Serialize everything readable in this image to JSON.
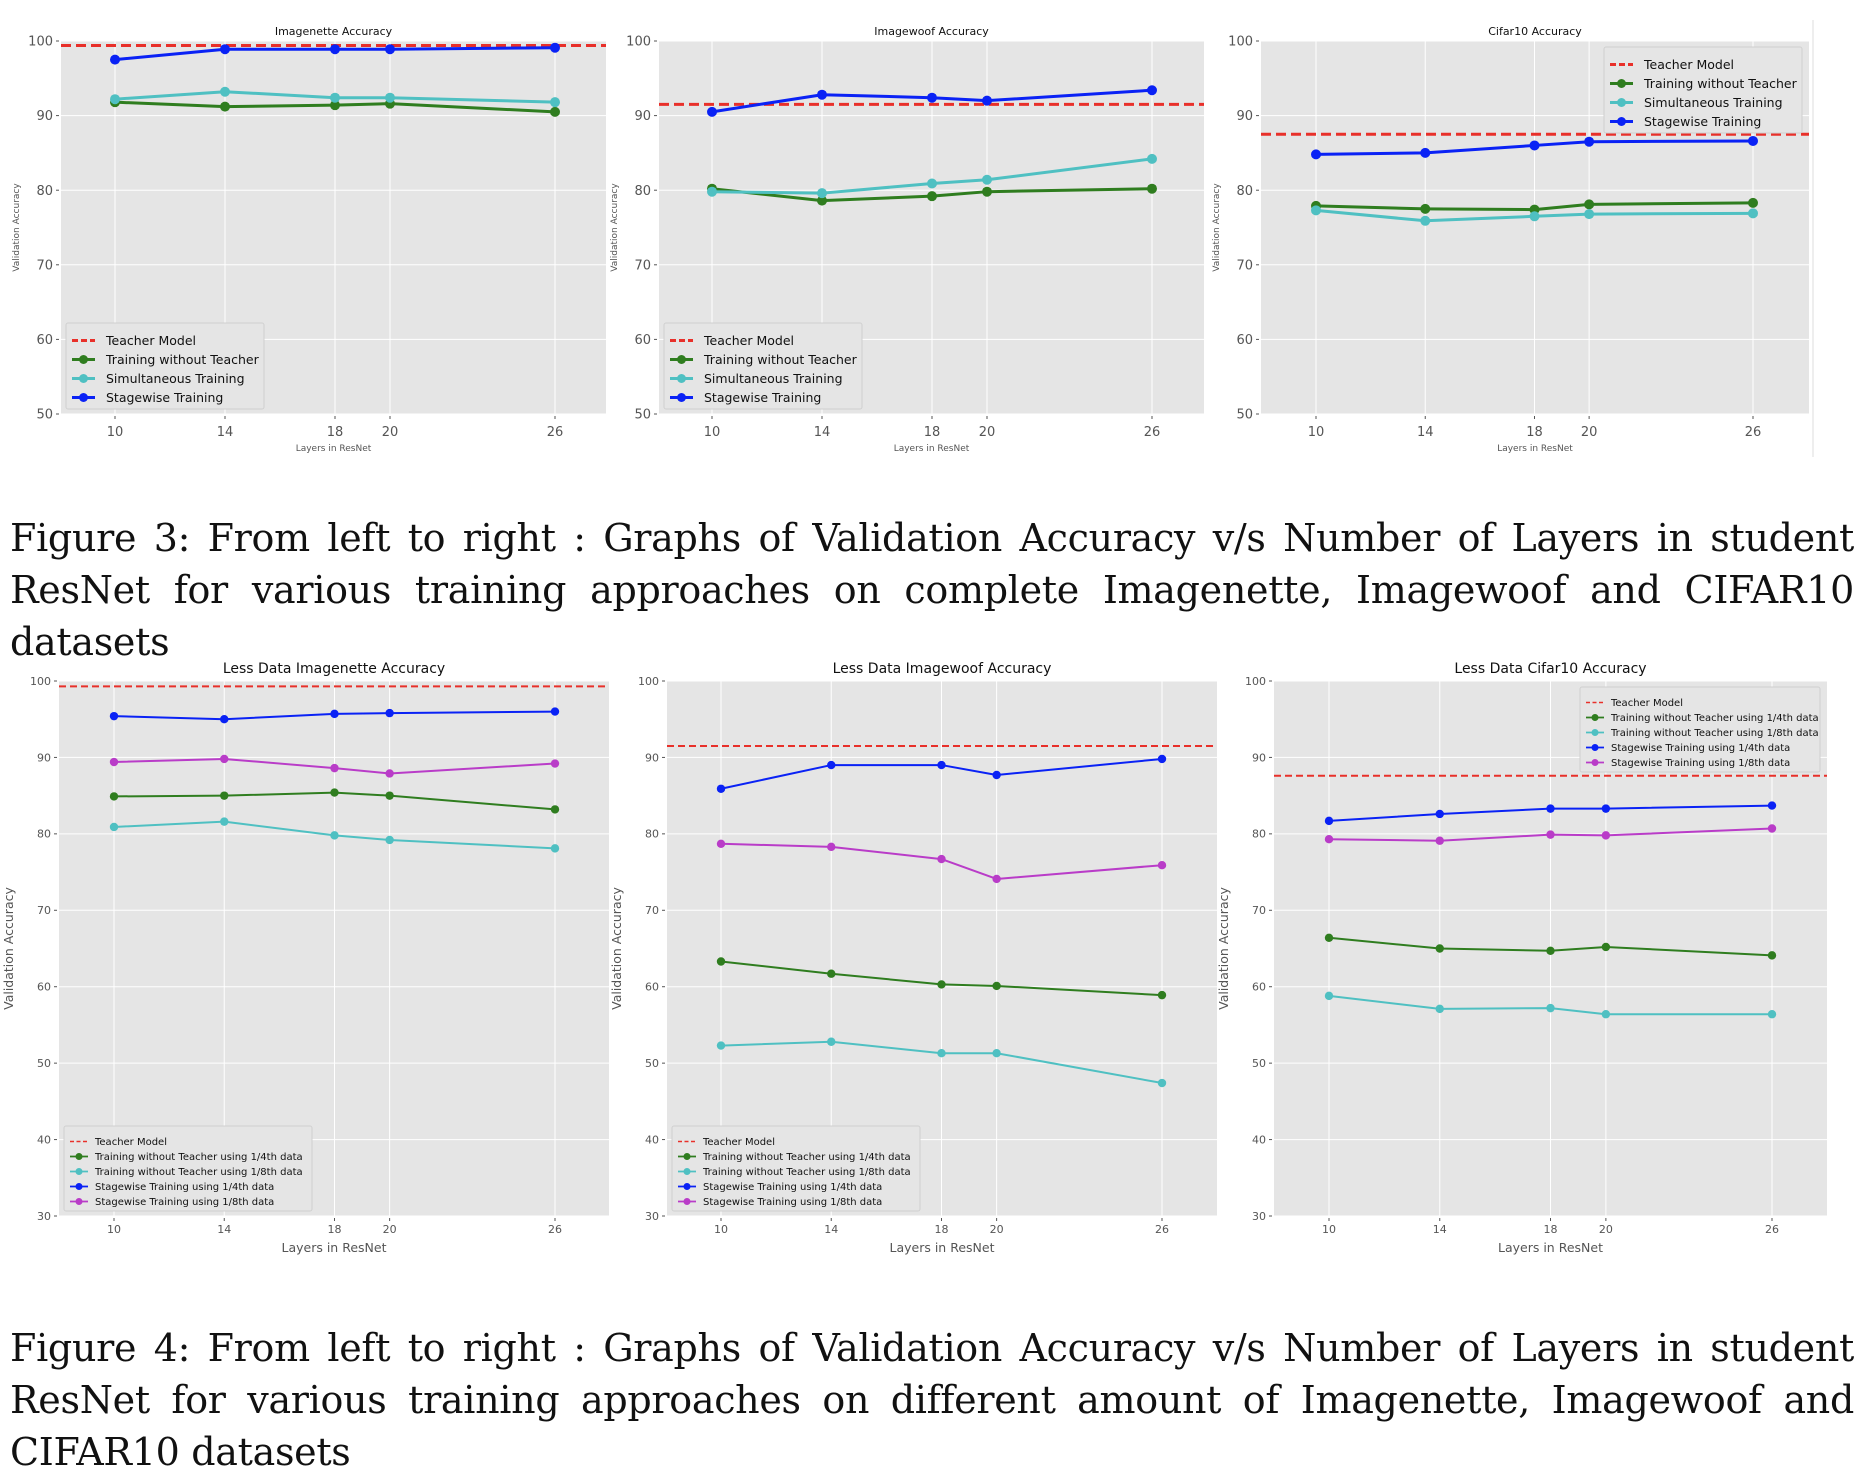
{
  "figures": [
    {
      "caption": "Figure 3: From left to right : Graphs of Validation Accuracy v/s Number of Layers in student ResNet for various training approaches on complete Imagenette, Imagewoof and CIFAR10 datasets"
    },
    {
      "caption": "Figure 4: From left to right : Graphs of Validation Accuracy v/s Number of Layers in student ResNet for various training approaches on different amount of Imagenette, Imagewoof and CIFAR10 datasets"
    }
  ],
  "colors": {
    "teacher": "#e8302a",
    "without_teacher": "#2f7d1f",
    "without_teacher_eighth": "#4fc0c2",
    "simultaneous": "#4fc0c2",
    "stagewise": "#0a22f5",
    "stagewise_eighth": "#b93cc8",
    "plot_bg": "#e5e5e5",
    "grid": "#ffffff",
    "tick_text": "#555555"
  },
  "chart_data": [
    {
      "type": "line",
      "title": "Imagenette Accuracy",
      "xlabel": "Layers in ResNet",
      "ylabel": "Validation Accuracy",
      "x": [
        10,
        14,
        18,
        20,
        26
      ],
      "xticks": [
        "10",
        "14",
        "18",
        "20",
        "26"
      ],
      "yticks": [
        "50",
        "60",
        "70",
        "80",
        "90",
        "100"
      ],
      "ylim": [
        50,
        100
      ],
      "xlim": [
        8,
        28
      ],
      "grid": true,
      "legend_position": "lower-left",
      "teacher": {
        "name": "Teacher Model",
        "value": 99.4
      },
      "series": [
        {
          "name": "Training without Teacher",
          "key": "without_teacher",
          "values": [
            91.8,
            91.2,
            91.4,
            91.6,
            90.5
          ]
        },
        {
          "name": "Simultaneous Training",
          "key": "simultaneous",
          "values": [
            92.2,
            93.2,
            92.4,
            92.4,
            91.8
          ]
        },
        {
          "name": "Stagewise Training",
          "key": "stagewise",
          "values": [
            97.5,
            98.9,
            98.9,
            98.9,
            99.1
          ]
        }
      ]
    },
    {
      "type": "line",
      "title": "Imagewoof Accuracy",
      "xlabel": "Layers in ResNet",
      "ylabel": "Validation Accuracy",
      "x": [
        10,
        14,
        18,
        20,
        26
      ],
      "xticks": [
        "10",
        "14",
        "18",
        "20",
        "26"
      ],
      "yticks": [
        "50",
        "60",
        "70",
        "80",
        "90",
        "100"
      ],
      "ylim": [
        50,
        100
      ],
      "xlim": [
        8,
        28
      ],
      "grid": true,
      "legend_position": "lower-left",
      "teacher": {
        "name": "Teacher Model",
        "value": 91.5
      },
      "series": [
        {
          "name": "Training without Teacher",
          "key": "without_teacher",
          "values": [
            80.2,
            78.6,
            79.2,
            79.8,
            80.2
          ]
        },
        {
          "name": "Simultaneous Training",
          "key": "simultaneous",
          "values": [
            79.8,
            79.6,
            80.9,
            81.4,
            84.2
          ]
        },
        {
          "name": "Stagewise Training",
          "key": "stagewise",
          "values": [
            90.5,
            92.8,
            92.4,
            92.0,
            93.4
          ]
        }
      ]
    },
    {
      "type": "line",
      "title": "Cifar10 Accuracy",
      "xlabel": "Layers in ResNet",
      "ylabel": "Validation Accuracy",
      "x": [
        10,
        14,
        18,
        20,
        26
      ],
      "xticks": [
        "10",
        "14",
        "18",
        "20",
        "26"
      ],
      "yticks": [
        "50",
        "60",
        "70",
        "80",
        "90",
        "100"
      ],
      "ylim": [
        50,
        100
      ],
      "xlim": [
        8,
        28
      ],
      "grid": true,
      "legend_position": "upper-right",
      "teacher": {
        "name": "Teacher Model",
        "value": 87.5
      },
      "series": [
        {
          "name": "Training without Teacher",
          "key": "without_teacher",
          "values": [
            77.9,
            77.5,
            77.4,
            78.1,
            78.3
          ]
        },
        {
          "name": "Simultaneous Training",
          "key": "simultaneous",
          "values": [
            77.3,
            75.9,
            76.5,
            76.8,
            76.9
          ]
        },
        {
          "name": "Stagewise Training",
          "key": "stagewise",
          "values": [
            84.8,
            85.0,
            86.0,
            86.5,
            86.6
          ]
        }
      ]
    },
    {
      "type": "line",
      "title": "Less Data Imagenette Accuracy",
      "xlabel": "Layers in ResNet",
      "ylabel": "Validation Accuracy",
      "x": [
        10,
        14,
        18,
        20,
        26
      ],
      "xticks": [
        "10",
        "14",
        "18",
        "20",
        "26"
      ],
      "yticks": [
        "30",
        "40",
        "50",
        "60",
        "70",
        "80",
        "90",
        "100"
      ],
      "ylim": [
        30,
        100
      ],
      "xlim": [
        8,
        28
      ],
      "grid": true,
      "legend_position": "lower-left",
      "teacher": {
        "name": "Teacher Model",
        "value": 99.3
      },
      "series": [
        {
          "name": "Training without Teacher using 1/4th data",
          "key": "without_teacher",
          "values": [
            84.9,
            85.0,
            85.4,
            85.0,
            83.2
          ]
        },
        {
          "name": "Training without Teacher using 1/8th data",
          "key": "without_teacher_eighth",
          "values": [
            80.9,
            81.6,
            79.8,
            79.2,
            78.1
          ]
        },
        {
          "name": "Stagewise Training using 1/4th data",
          "key": "stagewise",
          "values": [
            95.4,
            95.0,
            95.7,
            95.8,
            96.0
          ]
        },
        {
          "name": "Stagewise Training using 1/8th data",
          "key": "stagewise_eighth",
          "values": [
            89.4,
            89.8,
            88.6,
            87.9,
            89.2
          ]
        }
      ]
    },
    {
      "type": "line",
      "title": "Less Data Imagewoof Accuracy",
      "xlabel": "Layers in ResNet",
      "ylabel": "Validation Accuracy",
      "x": [
        10,
        14,
        18,
        20,
        26
      ],
      "xticks": [
        "10",
        "14",
        "18",
        "20",
        "26"
      ],
      "yticks": [
        "30",
        "40",
        "50",
        "60",
        "70",
        "80",
        "90",
        "100"
      ],
      "ylim": [
        30,
        100
      ],
      "xlim": [
        8,
        28
      ],
      "grid": true,
      "legend_position": "lower-left",
      "teacher": {
        "name": "Teacher Model",
        "value": 91.5
      },
      "series": [
        {
          "name": "Training without Teacher using 1/4th data",
          "key": "without_teacher",
          "values": [
            63.3,
            61.7,
            60.3,
            60.1,
            58.9
          ]
        },
        {
          "name": "Training without Teacher using 1/8th data",
          "key": "without_teacher_eighth",
          "values": [
            52.3,
            52.8,
            51.3,
            51.3,
            47.4
          ]
        },
        {
          "name": "Stagewise Training using 1/4th data",
          "key": "stagewise",
          "values": [
            85.9,
            89.0,
            89.0,
            87.7,
            89.8
          ]
        },
        {
          "name": "Stagewise Training using 1/8th data",
          "key": "stagewise_eighth",
          "values": [
            78.7,
            78.3,
            76.7,
            74.1,
            75.9
          ]
        }
      ]
    },
    {
      "type": "line",
      "title": "Less Data Cifar10 Accuracy",
      "xlabel": "Layers in ResNet",
      "ylabel": "Validation Accuracy",
      "x": [
        10,
        14,
        18,
        20,
        26
      ],
      "xticks": [
        "10",
        "14",
        "18",
        "20",
        "26"
      ],
      "yticks": [
        "30",
        "40",
        "50",
        "60",
        "70",
        "80",
        "90",
        "100"
      ],
      "ylim": [
        30,
        100
      ],
      "xlim": [
        8,
        28
      ],
      "grid": true,
      "legend_position": "upper-right",
      "teacher": {
        "name": "Teacher Model",
        "value": 87.6
      },
      "series": [
        {
          "name": "Training without Teacher using 1/4th data",
          "key": "without_teacher",
          "values": [
            66.4,
            65.0,
            64.7,
            65.2,
            64.1
          ]
        },
        {
          "name": "Training without Teacher using 1/8th data",
          "key": "without_teacher_eighth",
          "values": [
            58.8,
            57.1,
            57.2,
            56.4,
            56.4
          ]
        },
        {
          "name": "Stagewise Training using 1/4th data",
          "key": "stagewise",
          "values": [
            81.7,
            82.6,
            83.3,
            83.3,
            83.7
          ]
        },
        {
          "name": "Stagewise Training using 1/8th data",
          "key": "stagewise_eighth",
          "values": [
            79.3,
            79.1,
            79.9,
            79.8,
            80.7
          ]
        }
      ]
    }
  ]
}
